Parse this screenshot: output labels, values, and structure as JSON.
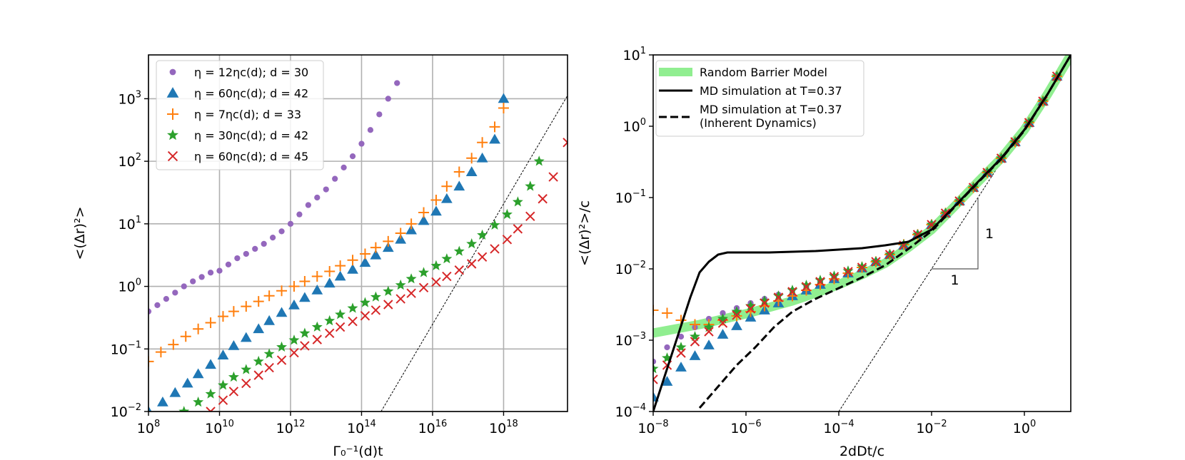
{
  "chart_data": [
    {
      "type": "scatter",
      "panel": "left",
      "xscale": "log",
      "yscale": "log",
      "xlim_exp": [
        8,
        19.8
      ],
      "ylim_exp": [
        -2,
        3.7
      ],
      "xlabel": "Γ₀⁻¹(d)t",
      "ylabel": "<(Δr)²>",
      "x_ticks": [
        {
          "base": "10",
          "exp": "8",
          "value_exp": 8
        },
        {
          "base": "10",
          "exp": "10",
          "value_exp": 10
        },
        {
          "base": "10",
          "exp": "12",
          "value_exp": 12
        },
        {
          "base": "10",
          "exp": "14",
          "value_exp": 14
        },
        {
          "base": "10",
          "exp": "16",
          "value_exp": 16
        },
        {
          "base": "10",
          "exp": "18",
          "value_exp": 18
        }
      ],
      "y_ticks": [
        {
          "base": "10",
          "exp": "−2",
          "value_exp": -2
        },
        {
          "base": "10",
          "exp": "−1",
          "value_exp": -1
        },
        {
          "base": "10",
          "exp": "0",
          "value_exp": 0
        },
        {
          "base": "10",
          "exp": "1",
          "value_exp": 1
        },
        {
          "base": "10",
          "exp": "2",
          "value_exp": 2
        },
        {
          "base": "10",
          "exp": "3",
          "value_exp": 3
        }
      ],
      "grid": true,
      "legend_position": "top-left",
      "series": [
        {
          "name": "η = 12ηc(d); d = 30",
          "marker": "circle",
          "color": "#9467bd",
          "x_exp": [
            8,
            8.25,
            8.5,
            8.75,
            9,
            9.25,
            9.5,
            9.75,
            10,
            10.25,
            10.5,
            10.75,
            11,
            11.25,
            11.5,
            11.75,
            12,
            12.25,
            12.5,
            12.75,
            13,
            13.25,
            13.5,
            13.75,
            14,
            14.25,
            14.5,
            14.75,
            15
          ],
          "y_exp": [
            -0.4,
            -0.3,
            -0.2,
            -0.1,
            0.0,
            0.08,
            0.15,
            0.22,
            0.25,
            0.35,
            0.45,
            0.52,
            0.6,
            0.68,
            0.78,
            0.88,
            1.0,
            1.15,
            1.3,
            1.42,
            1.55,
            1.72,
            1.9,
            2.08,
            2.28,
            2.5,
            2.75,
            3.0,
            3.25
          ]
        },
        {
          "name": "η = 60ηc(d); d = 42",
          "marker": "triangle",
          "color": "#1f77b4",
          "x_exp": [
            8,
            8.4,
            8.75,
            9.1,
            9.4,
            9.75,
            10.1,
            10.4,
            10.75,
            11.1,
            11.4,
            11.75,
            12.1,
            12.4,
            12.75,
            13.1,
            13.4,
            13.75,
            14.1,
            14.4,
            14.75,
            15.1,
            15.4,
            15.75,
            16.1,
            16.4,
            16.75,
            17.1,
            17.4,
            17.75,
            18
          ],
          "y_exp": [
            -2.0,
            -1.85,
            -1.7,
            -1.55,
            -1.4,
            -1.25,
            -1.1,
            -0.95,
            -0.82,
            -0.68,
            -0.55,
            -0.42,
            -0.3,
            -0.18,
            -0.06,
            0.05,
            0.16,
            0.27,
            0.38,
            0.5,
            0.62,
            0.75,
            0.9,
            1.05,
            1.2,
            1.4,
            1.6,
            1.83,
            2.05,
            2.35,
            3.0
          ]
        },
        {
          "name": "η = 7ηc(d); d = 33",
          "marker": "plus",
          "color": "#ff7f0e",
          "x_exp": [
            8,
            8.35,
            8.7,
            9.05,
            9.4,
            9.75,
            10.1,
            10.4,
            10.75,
            11.1,
            11.4,
            11.75,
            12.1,
            12.4,
            12.75,
            13.1,
            13.4,
            13.75,
            14.1,
            14.4,
            14.75,
            15.1,
            15.4,
            15.75,
            16.1,
            16.4,
            16.75,
            17.1,
            17.4,
            17.75,
            18
          ],
          "y_exp": [
            -1.2,
            -1.05,
            -0.93,
            -0.8,
            -0.68,
            -0.58,
            -0.48,
            -0.4,
            -0.32,
            -0.24,
            -0.15,
            -0.07,
            0.0,
            0.08,
            0.16,
            0.24,
            0.33,
            0.42,
            0.52,
            0.62,
            0.72,
            0.85,
            1.0,
            1.18,
            1.38,
            1.6,
            1.83,
            2.05,
            2.3,
            2.55,
            2.85
          ]
        },
        {
          "name": "η = 30ηc(d); d = 42",
          "marker": "star",
          "color": "#2ca02c",
          "x_exp": [
            9,
            9.4,
            9.75,
            10.1,
            10.4,
            10.75,
            11.1,
            11.4,
            11.75,
            12.1,
            12.4,
            12.75,
            13.1,
            13.4,
            13.75,
            14.1,
            14.4,
            14.75,
            15.1,
            15.4,
            15.75,
            16.1,
            16.4,
            16.75,
            17.1,
            17.4,
            17.75,
            18.1,
            18.4,
            18.75,
            19
          ],
          "y_exp": [
            -2.0,
            -1.85,
            -1.72,
            -1.58,
            -1.45,
            -1.33,
            -1.2,
            -1.08,
            -0.97,
            -0.86,
            -0.75,
            -0.65,
            -0.55,
            -0.45,
            -0.35,
            -0.26,
            -0.17,
            -0.08,
            0.02,
            0.12,
            0.22,
            0.33,
            0.44,
            0.56,
            0.68,
            0.82,
            0.98,
            1.15,
            1.35,
            1.6,
            2.0
          ]
        },
        {
          "name": "η = 60ηc(d); d = 45",
          "marker": "x",
          "color": "#d62728",
          "x_exp": [
            9.75,
            10.1,
            10.4,
            10.75,
            11.1,
            11.4,
            11.75,
            12.1,
            12.4,
            12.75,
            13.1,
            13.4,
            13.75,
            14.1,
            14.4,
            14.75,
            15.1,
            15.4,
            15.75,
            16.1,
            16.4,
            16.75,
            17.1,
            17.4,
            17.75,
            18.1,
            18.4,
            18.75,
            19.1,
            19.4,
            19.8
          ],
          "y_exp": [
            -2.0,
            -1.82,
            -1.68,
            -1.55,
            -1.42,
            -1.3,
            -1.18,
            -1.06,
            -0.95,
            -0.85,
            -0.75,
            -0.65,
            -0.56,
            -0.47,
            -0.38,
            -0.29,
            -0.2,
            -0.11,
            -0.02,
            0.07,
            0.16,
            0.26,
            0.36,
            0.47,
            0.6,
            0.75,
            0.92,
            1.12,
            1.4,
            1.75,
            2.3
          ]
        }
      ],
      "reference_line": {
        "x_exp": [
          14.55,
          19.8
        ],
        "y_exp": [
          -2.0,
          3.05
        ]
      }
    },
    {
      "type": "scatter",
      "panel": "right",
      "xscale": "log",
      "yscale": "log",
      "xlim_exp": [
        -8,
        1
      ],
      "ylim_exp": [
        -4,
        1
      ],
      "xlabel": "2dDt/c",
      "ylabel": "<(Δr)²>/c",
      "x_ticks": [
        {
          "base": "10",
          "exp": "−8",
          "value_exp": -8
        },
        {
          "base": "10",
          "exp": "−6",
          "value_exp": -6
        },
        {
          "base": "10",
          "exp": "−4",
          "value_exp": -4
        },
        {
          "base": "10",
          "exp": "−2",
          "value_exp": -2
        },
        {
          "base": "10",
          "exp": "0",
          "value_exp": 0
        }
      ],
      "y_ticks": [
        {
          "base": "10",
          "exp": "−4",
          "value_exp": -4
        },
        {
          "base": "10",
          "exp": "−3",
          "value_exp": -3
        },
        {
          "base": "10",
          "exp": "−2",
          "value_exp": -2
        },
        {
          "base": "10",
          "exp": "−1",
          "value_exp": -1
        },
        {
          "base": "10",
          "exp": "0",
          "value_exp": 0
        },
        {
          "base": "10",
          "exp": "1",
          "value_exp": 1
        }
      ],
      "grid": false,
      "legend_position": "top-left",
      "legend": [
        {
          "label": "Random Barrier Model",
          "style": "thick-green"
        },
        {
          "label": "MD simulation at T=0.37",
          "style": "solid-black"
        },
        {
          "label": "MD simulation at T=0.37",
          "label2": "(Inherent Dynamics)",
          "style": "dashed-black"
        }
      ],
      "lines": [
        {
          "name": "Random Barrier Model",
          "color": "#90ee90",
          "x_exp": [
            -8,
            -7,
            -6,
            -5,
            -4.5,
            -4,
            -3.5,
            -3,
            -2.5,
            -2,
            -1.5,
            -1,
            -0.5,
            0,
            0.5,
            1
          ],
          "y_exp": [
            -2.9,
            -2.78,
            -2.63,
            -2.45,
            -2.34,
            -2.22,
            -2.08,
            -1.92,
            -1.7,
            -1.45,
            -1.12,
            -0.78,
            -0.45,
            -0.05,
            0.45,
            1.0
          ]
        },
        {
          "name": "MD simulation at T=0.37",
          "color": "#000000",
          "dash": "solid",
          "x_exp": [
            -8,
            -7.8,
            -7.6,
            -7.4,
            -7.2,
            -7.0,
            -6.8,
            -6.6,
            -6.4,
            -6.0,
            -5.5,
            -5.0,
            -4.5,
            -4.0,
            -3.5,
            -3.0,
            -2.5,
            -2.0,
            -1.5,
            -1.0,
            -0.5,
            0,
            0.5,
            1
          ],
          "y_exp": [
            -4.0,
            -3.6,
            -3.2,
            -2.8,
            -2.4,
            -2.05,
            -1.9,
            -1.8,
            -1.77,
            -1.77,
            -1.77,
            -1.76,
            -1.75,
            -1.73,
            -1.71,
            -1.67,
            -1.62,
            -1.45,
            -1.12,
            -0.78,
            -0.45,
            -0.05,
            0.45,
            1.0
          ]
        },
        {
          "name": "MD simulation at T=0.37 (Inherent Dynamics)",
          "color": "#000000",
          "dash": "dashed",
          "x_exp": [
            -7,
            -6.6,
            -6.2,
            -5.8,
            -5.4,
            -5.0,
            -4.5,
            -4.0,
            -3.5,
            -3.0,
            -2.5,
            -2.0,
            -1.5,
            -1.0,
            -0.5,
            0,
            0.5,
            1
          ],
          "y_exp": [
            -3.95,
            -3.65,
            -3.35,
            -3.1,
            -2.82,
            -2.6,
            -2.42,
            -2.27,
            -2.12,
            -1.95,
            -1.72,
            -1.47,
            -1.13,
            -0.79,
            -0.46,
            -0.06,
            0.45,
            1.0
          ]
        }
      ],
      "series_x_exp": [
        -8.0,
        -7.7,
        -7.4,
        -7.1,
        -6.8,
        -6.5,
        -6.2,
        -5.9,
        -5.6,
        -5.3,
        -5.0,
        -4.7,
        -4.4,
        -4.1,
        -3.8,
        -3.5,
        -3.2,
        -2.9,
        -2.6,
        -2.3,
        -2.0,
        -1.7,
        -1.4,
        -1.1,
        -0.8,
        -0.5,
        -0.2,
        0.1,
        0.4,
        0.7
      ],
      "series": [
        {
          "name": "η = 12ηc(d); d = 30",
          "marker": "circle",
          "color": "#9467bd",
          "y_exp": [
            -3.3,
            -3.1,
            -2.95,
            -2.82,
            -2.7,
            -2.62,
            -2.55,
            -2.48,
            -2.42,
            -2.36,
            -2.3,
            -2.24,
            -2.18,
            -2.12,
            -2.05,
            -1.98,
            -1.9,
            -1.8,
            -1.65,
            -1.52,
            -1.38,
            -1.22,
            -1.05,
            -0.86,
            -0.65,
            -0.45,
            -0.22,
            0.05,
            0.35,
            0.7
          ]
        },
        {
          "name": "η = 60ηc(d); d = 42",
          "marker": "triangle",
          "color": "#1f77b4",
          "y_exp": [
            -3.8,
            -3.58,
            -3.38,
            -3.22,
            -3.07,
            -2.92,
            -2.8,
            -2.68,
            -2.58,
            -2.48,
            -2.38,
            -2.3,
            -2.22,
            -2.14,
            -2.06,
            -1.99,
            -1.9,
            -1.8,
            -1.67,
            -1.52,
            -1.38,
            -1.22,
            -1.05,
            -0.86,
            -0.65,
            -0.45,
            -0.22,
            0.05,
            0.35,
            0.7
          ]
        },
        {
          "name": "η = 7ηc(d); d = 33",
          "marker": "plus",
          "color": "#ff7f0e",
          "y_exp": [
            -2.58,
            -2.62,
            -2.72,
            -2.78,
            -2.78,
            -2.72,
            -2.66,
            -2.6,
            -2.52,
            -2.45,
            -2.38,
            -2.3,
            -2.22,
            -2.14,
            -2.06,
            -1.98,
            -1.9,
            -1.8,
            -1.66,
            -1.52,
            -1.38,
            -1.22,
            -1.05,
            -0.86,
            -0.65,
            -0.45,
            -0.22,
            0.05,
            0.35,
            0.7
          ]
        },
        {
          "name": "η = 30ηc(d); d = 42",
          "marker": "star",
          "color": "#2ca02c",
          "y_exp": [
            -3.4,
            -3.25,
            -3.1,
            -2.95,
            -2.82,
            -2.7,
            -2.6,
            -2.52,
            -2.45,
            -2.38,
            -2.3,
            -2.23,
            -2.16,
            -2.1,
            -2.03,
            -1.97,
            -1.9,
            -1.8,
            -1.66,
            -1.52,
            -1.38,
            -1.22,
            -1.05,
            -0.86,
            -0.65,
            -0.45,
            -0.22,
            0.05,
            0.35,
            0.7
          ]
        },
        {
          "name": "η = 60ηc(d); d = 45",
          "marker": "x",
          "color": "#d62728",
          "y_exp": [
            -3.55,
            -3.35,
            -3.18,
            -3.02,
            -2.88,
            -2.76,
            -2.65,
            -2.56,
            -2.48,
            -2.4,
            -2.32,
            -2.25,
            -2.18,
            -2.11,
            -2.04,
            -1.98,
            -1.9,
            -1.8,
            -1.67,
            -1.52,
            -1.38,
            -1.22,
            -1.05,
            -0.86,
            -0.65,
            -0.45,
            -0.22,
            0.05,
            0.35,
            0.7
          ]
        }
      ],
      "reference_line": {
        "x_exp": [
          -4.0,
          1.0
        ],
        "y_exp": [
          -4.0,
          1.0
        ]
      },
      "slope_triangle": {
        "x_exp": [
          -2,
          -1
        ],
        "y_exp": [
          -2,
          -1
        ],
        "label_vertical": "1",
        "label_horizontal": "1"
      }
    }
  ]
}
